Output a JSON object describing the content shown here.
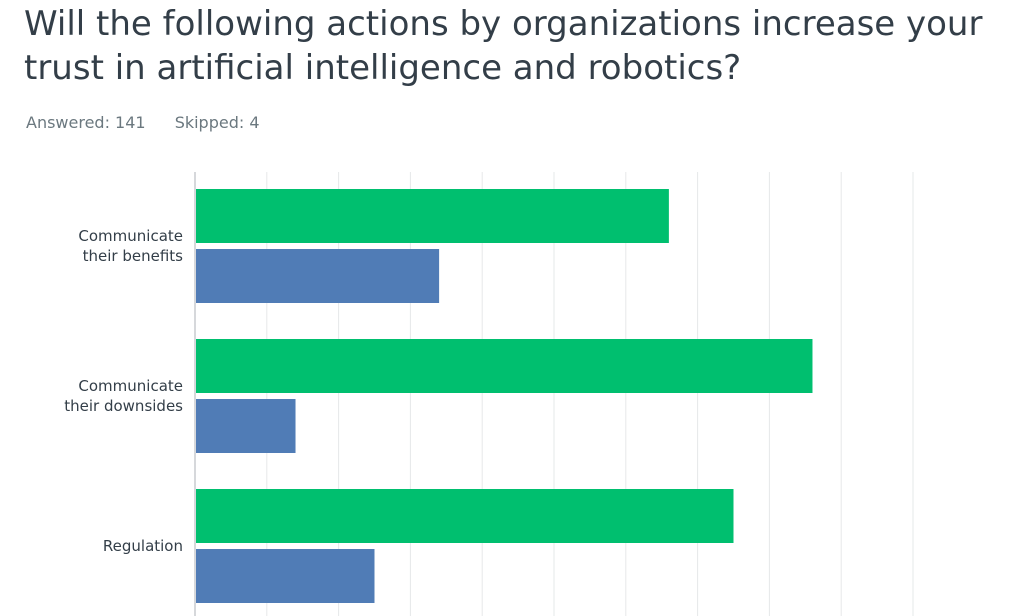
{
  "question": {
    "title": "Will the following actions by organizations increase your trust in artificial intelligence and robotics?",
    "answered_label": "Answered: 141",
    "skipped_label": "Skipped: 4"
  },
  "colors": {
    "series_1": "#00bf6f",
    "series_2": "#507cb6",
    "grid": "#e6e8e9",
    "axis": "#c9cccf"
  },
  "chart_data": {
    "type": "bar",
    "orientation": "horizontal",
    "categories": [
      [
        "Communicate",
        "their benefits"
      ],
      [
        "Communicate",
        "their downsides"
      ],
      [
        "Regulation"
      ]
    ],
    "series": [
      {
        "values": [
          66,
          86,
          75
        ]
      },
      {
        "values": [
          34,
          14,
          25
        ]
      }
    ],
    "xlim": [
      0,
      100
    ],
    "grid": true
  }
}
